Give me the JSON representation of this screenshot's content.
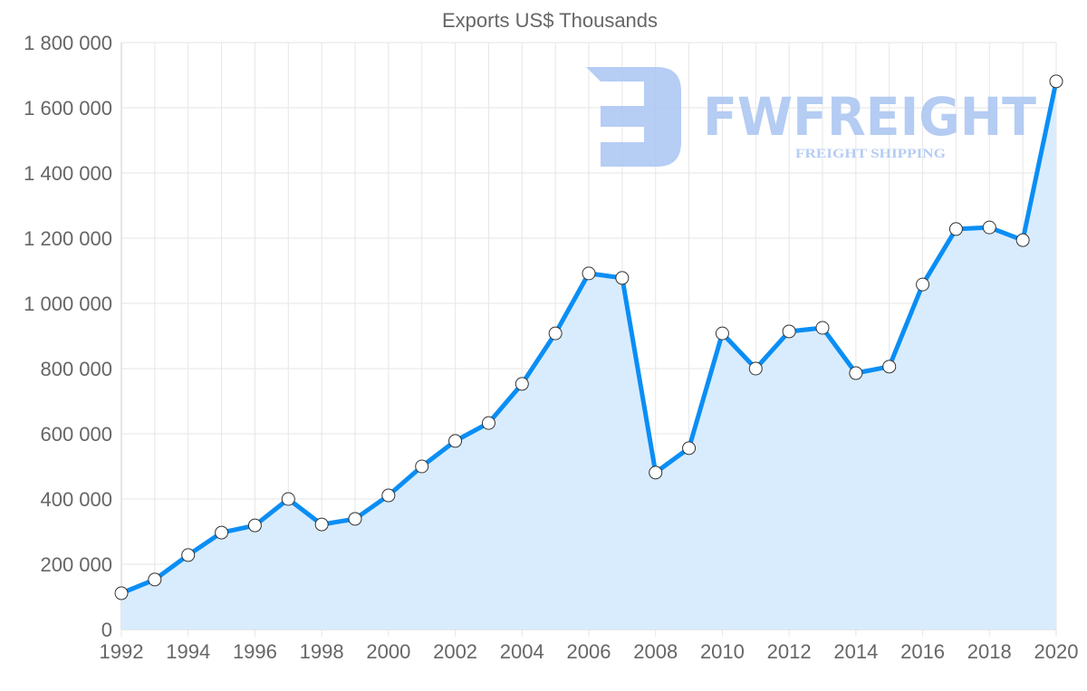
{
  "chart_data": {
    "type": "area",
    "title": "Exports US$ Thousands",
    "xlabel": "",
    "ylabel": "",
    "x": [
      1992,
      1993,
      1994,
      1995,
      1996,
      1997,
      1998,
      1999,
      2000,
      2001,
      2002,
      2003,
      2004,
      2005,
      2006,
      2007,
      2008,
      2009,
      2010,
      2011,
      2012,
      2013,
      2014,
      2015,
      2016,
      2017,
      2018,
      2019,
      2020
    ],
    "series": [
      {
        "name": "Exports US$ Thousands",
        "values": [
          111000,
          153000,
          228000,
          297000,
          319000,
          400000,
          322000,
          339000,
          411000,
          500000,
          578000,
          633000,
          753000,
          908000,
          1092000,
          1078000,
          481000,
          556000,
          908000,
          800000,
          914000,
          925000,
          786000,
          806000,
          1058000,
          1228000,
          1233000,
          1194000,
          1681000
        ],
        "line_color": "#0a8ef5",
        "fill_color": "#d9ecfd"
      }
    ],
    "ylim": [
      0,
      1800000
    ],
    "xlim": [
      1992,
      2020
    ],
    "yticks": [
      0,
      200000,
      400000,
      600000,
      800000,
      1000000,
      1200000,
      1400000,
      1600000,
      1800000
    ],
    "ytick_labels": [
      "0",
      "200 000",
      "400 000",
      "600 000",
      "800 000",
      "1 000 000",
      "1 200 000",
      "1 400 000",
      "1 600 000",
      "1 800 000"
    ],
    "xticks": [
      1992,
      1994,
      1996,
      1998,
      2000,
      2002,
      2004,
      2006,
      2008,
      2010,
      2012,
      2014,
      2016,
      2018,
      2020
    ],
    "xtick_labels": [
      "1992",
      "1994",
      "1996",
      "1998",
      "2000",
      "2002",
      "2004",
      "2006",
      "2008",
      "2010",
      "2012",
      "2014",
      "2016",
      "2018",
      "2020"
    ],
    "grid": true,
    "legend": "none"
  },
  "watermark": {
    "brand": "FWFREIGHT",
    "tagline": "FREIGHT SHIPPING",
    "color": "#a9c4f2"
  }
}
